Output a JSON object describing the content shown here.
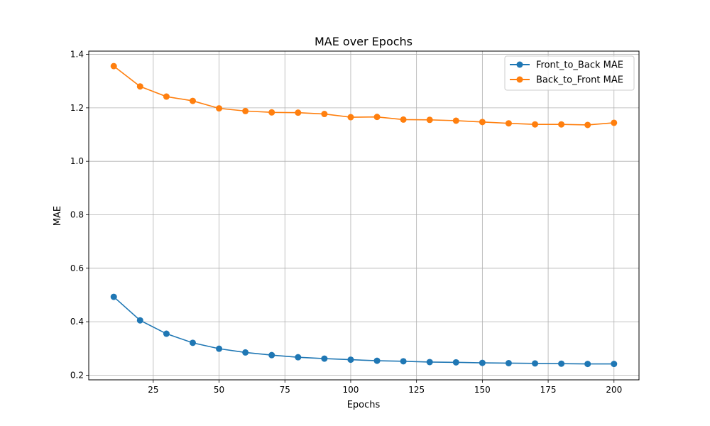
{
  "chart_data": {
    "type": "line",
    "title": "MAE over Epochs",
    "xlabel": "Epochs",
    "ylabel": "MAE",
    "xlim": [
      0.5,
      209.5
    ],
    "ylim": [
      0.1825,
      1.4121
    ],
    "x_ticks": [
      25,
      50,
      75,
      100,
      125,
      150,
      175,
      200
    ],
    "y_ticks": [
      0.2,
      0.4,
      0.6,
      0.8,
      1.0,
      1.2,
      1.4
    ],
    "y_tick_labels": [
      "0.2",
      "0.4",
      "0.6",
      "0.8",
      "1.0",
      "1.2",
      "1.4"
    ],
    "grid": true,
    "legend_position": "top-right",
    "x": [
      10,
      20,
      30,
      40,
      50,
      60,
      70,
      80,
      90,
      100,
      110,
      120,
      130,
      140,
      150,
      160,
      170,
      180,
      190,
      200
    ],
    "series": [
      {
        "name": "Front_to_Back MAE",
        "color": "#1f77b4",
        "values": [
          0.493,
          0.405,
          0.355,
          0.321,
          0.299,
          0.285,
          0.275,
          0.267,
          0.262,
          0.258,
          0.254,
          0.252,
          0.249,
          0.248,
          0.246,
          0.245,
          0.244,
          0.243,
          0.242,
          0.242
        ]
      },
      {
        "name": "Back_to_Front MAE",
        "color": "#ff7f0e",
        "values": [
          1.356,
          1.28,
          1.242,
          1.226,
          1.198,
          1.188,
          1.183,
          1.182,
          1.177,
          1.165,
          1.166,
          1.156,
          1.155,
          1.152,
          1.147,
          1.142,
          1.138,
          1.138,
          1.136,
          1.144
        ]
      }
    ]
  }
}
